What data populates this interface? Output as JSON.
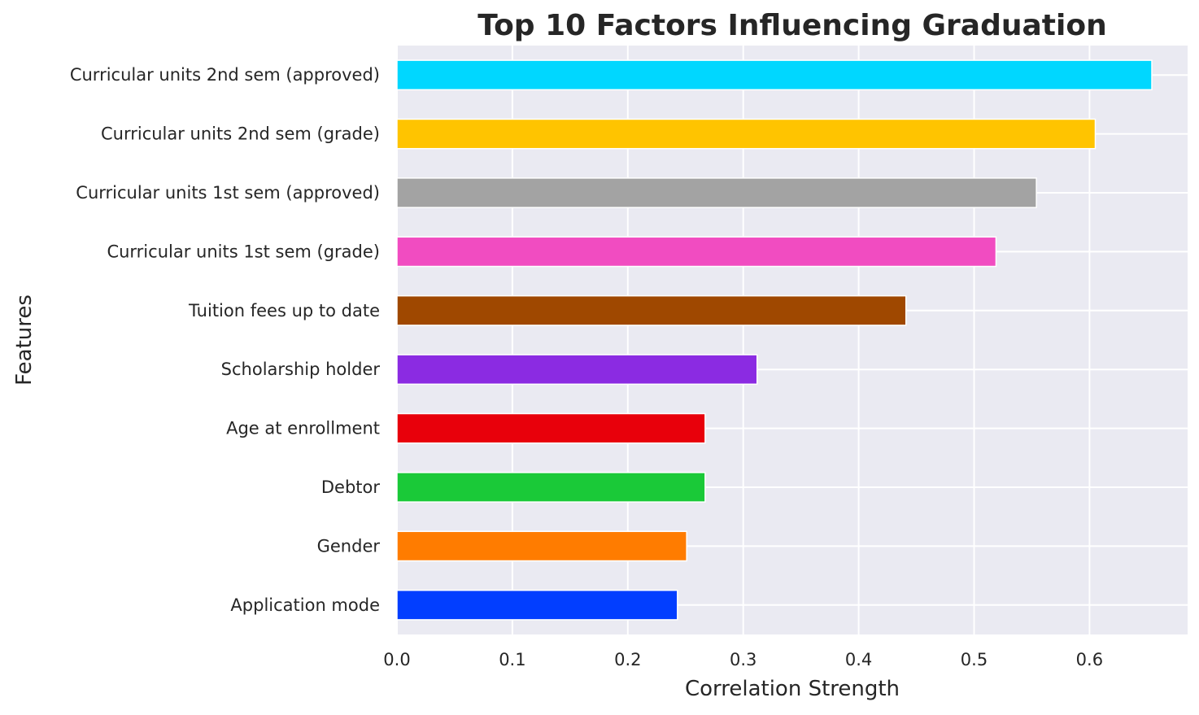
{
  "chart_data": {
    "type": "bar",
    "orientation": "horizontal",
    "title": "Top 10 Factors Influencing Graduation",
    "xlabel": "Correlation Strength",
    "ylabel": "Features",
    "xlim": [
      0,
      0.685
    ],
    "xticks": [
      "0.0",
      "0.1",
      "0.2",
      "0.3",
      "0.4",
      "0.5",
      "0.6"
    ],
    "grid": true,
    "legend": "none",
    "categories": [
      "Curricular units 2nd sem (approved)",
      "Curricular units 2nd sem (grade)",
      "Curricular units 1st sem (approved)",
      "Curricular units 1st sem (grade)",
      "Tuition fees up to date",
      "Scholarship holder",
      "Age at enrollment",
      "Debtor",
      "Gender",
      "Application mode"
    ],
    "values": [
      0.654,
      0.605,
      0.554,
      0.519,
      0.441,
      0.312,
      0.267,
      0.267,
      0.251,
      0.243
    ],
    "colors": [
      "#00d7ff",
      "#ffc400",
      "#a3a3a3",
      "#f14cc1",
      "#9f4800",
      "#8b2be2",
      "#e8000b",
      "#1ac938",
      "#ff7c00",
      "#023eff"
    ],
    "background_color": "#eaeaf2",
    "grid_color": "#ffffff"
  }
}
